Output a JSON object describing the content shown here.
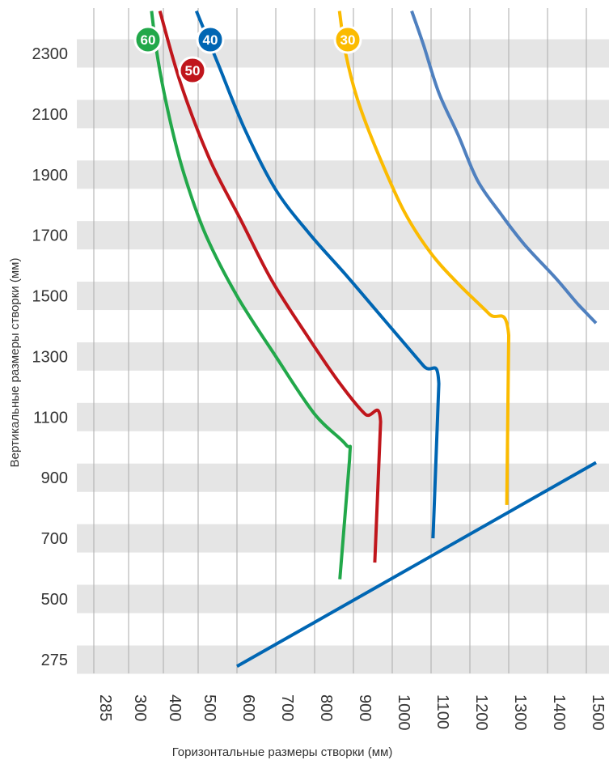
{
  "chart_data": {
    "type": "line",
    "title": "",
    "xlabel": "Горизонтальные размеры створки (мм)",
    "ylabel": "Вертикальные размеры створки (мм)",
    "x_ticks": [
      "285",
      "300",
      "400",
      "500",
      "600",
      "700",
      "800",
      "900",
      "1000",
      "1100",
      "1200",
      "1300",
      "1400",
      "1500"
    ],
    "y_ticks": [
      "275",
      "500",
      "700",
      "900",
      "1100",
      "1300",
      "1500",
      "1700",
      "1900",
      "2100",
      "2300"
    ],
    "grid": "vertical lines + horizontal bands",
    "colors": {
      "green": "#22a84a",
      "red": "#c0161c",
      "blue": "#0066b3",
      "yellow": "#fbbb00",
      "lightblue": "#4f80bf",
      "band": "#e5e5e5",
      "gridline": "#aaaaaa"
    },
    "series": [
      {
        "name": "60",
        "color": "#22a84a",
        "points": [
          [
            366,
            2440
          ],
          [
            385,
            2275
          ],
          [
            420,
            2075
          ],
          [
            460,
            1900
          ],
          [
            520,
            1700
          ],
          [
            600,
            1500
          ],
          [
            700,
            1300
          ],
          [
            800,
            1110
          ],
          [
            880,
            1010
          ],
          [
            890,
            960
          ],
          [
            865,
            565
          ]
        ]
      },
      {
        "name": "50",
        "color": "#c0161c",
        "points": [
          [
            390,
            2440
          ],
          [
            450,
            2200
          ],
          [
            530,
            1950
          ],
          [
            610,
            1750
          ],
          [
            690,
            1550
          ],
          [
            780,
            1370
          ],
          [
            860,
            1220
          ],
          [
            930,
            1110
          ],
          [
            970,
            1085
          ],
          [
            955,
            620
          ]
        ]
      },
      {
        "name": "40",
        "color": "#0066b3",
        "points": [
          [
            495,
            2440
          ],
          [
            550,
            2270
          ],
          [
            620,
            2050
          ],
          [
            700,
            1850
          ],
          [
            790,
            1700
          ],
          [
            880,
            1570
          ],
          [
            980,
            1420
          ],
          [
            1080,
            1270
          ],
          [
            1120,
            1210
          ],
          [
            1105,
            700
          ]
        ]
      },
      {
        "name": "30",
        "color": "#fbbb00",
        "points": [
          [
            864,
            2440
          ],
          [
            880,
            2300
          ],
          [
            910,
            2150
          ],
          [
            960,
            1980
          ],
          [
            1030,
            1780
          ],
          [
            1100,
            1640
          ],
          [
            1170,
            1540
          ],
          [
            1250,
            1440
          ],
          [
            1300,
            1370
          ],
          [
            1295,
            810
          ]
        ]
      },
      {
        "name": "",
        "color": "#4f80bf",
        "points": [
          [
            1050,
            2440
          ],
          [
            1080,
            2330
          ],
          [
            1120,
            2170
          ],
          [
            1170,
            2030
          ],
          [
            1220,
            1880
          ],
          [
            1280,
            1770
          ],
          [
            1340,
            1670
          ],
          [
            1420,
            1560
          ],
          [
            1480,
            1470
          ],
          [
            1525,
            1410
          ]
        ]
      },
      {
        "name": "",
        "color": "#0066b3",
        "points": [
          [
            600,
            250
          ],
          [
            1525,
            950
          ]
        ]
      }
    ]
  }
}
